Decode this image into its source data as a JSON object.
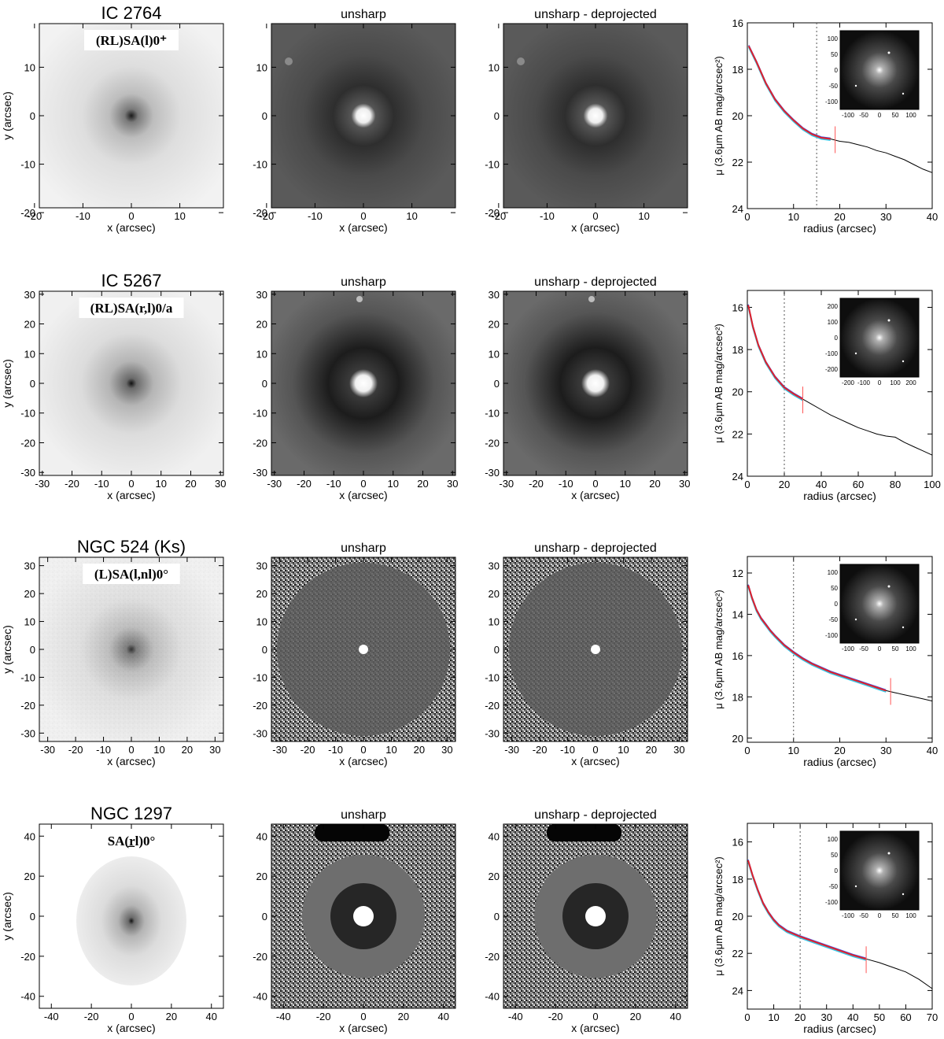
{
  "figure": {
    "panel_titles": {
      "unsharp": "unsharp",
      "deprojected": "unsharp - deprojected"
    },
    "labels": {
      "x_image": "x (arcsec)",
      "y_image": "y (arcsec)",
      "x_profile": "radius (arcsec)",
      "y_profile": "μ (3.6μm AB mag/arcsec²)"
    },
    "rows": [
      {
        "name": "IC 2764",
        "classification": "(RL)SA(l)0⁺",
        "image_ticks": [
          -20,
          -10,
          0,
          10
        ],
        "image_range": [
          -19,
          19
        ],
        "profile": {
          "x_ticks": [
            0,
            10,
            20,
            30,
            40
          ],
          "xlim": [
            0,
            40
          ],
          "y_ticks": [
            16,
            18,
            20,
            22,
            24
          ],
          "ylim": [
            24,
            16
          ],
          "dotted_radius": 15,
          "fit_end": 19,
          "curve": [
            [
              0.3,
              17.0
            ],
            [
              2,
              17.7
            ],
            [
              4,
              18.6
            ],
            [
              6,
              19.3
            ],
            [
              8,
              19.8
            ],
            [
              10,
              20.2
            ],
            [
              12,
              20.55
            ],
            [
              14,
              20.8
            ],
            [
              16,
              20.95
            ],
            [
              18,
              21.0
            ],
            [
              20,
              21.1
            ],
            [
              22,
              21.15
            ],
            [
              24,
              21.25
            ],
            [
              26,
              21.35
            ],
            [
              28,
              21.5
            ],
            [
              30,
              21.6
            ],
            [
              32,
              21.75
            ],
            [
              34,
              21.9
            ],
            [
              36,
              22.1
            ],
            [
              38,
              22.3
            ],
            [
              40,
              22.45
            ]
          ],
          "inset_ticks": [
            -100,
            -50,
            0,
            50,
            100
          ]
        }
      },
      {
        "name": "IC 5267",
        "classification": "(RL)SA(r,l)0/a",
        "image_ticks": [
          -30,
          -20,
          -10,
          0,
          10,
          20,
          30
        ],
        "image_range": [
          -31,
          31
        ],
        "profile": {
          "x_ticks": [
            0,
            20,
            40,
            60,
            80,
            100
          ],
          "xlim": [
            0,
            100
          ],
          "y_ticks": [
            16,
            18,
            20,
            22,
            24
          ],
          "ylim": [
            24,
            15.2
          ],
          "dotted_radius": 20,
          "fit_end": 30,
          "curve": [
            [
              0.5,
              15.9
            ],
            [
              3,
              16.9
            ],
            [
              6,
              17.8
            ],
            [
              10,
              18.6
            ],
            [
              15,
              19.3
            ],
            [
              20,
              19.8
            ],
            [
              25,
              20.1
            ],
            [
              30,
              20.35
            ],
            [
              35,
              20.6
            ],
            [
              40,
              20.85
            ],
            [
              45,
              21.1
            ],
            [
              50,
              21.3
            ],
            [
              55,
              21.5
            ],
            [
              60,
              21.7
            ],
            [
              65,
              21.85
            ],
            [
              70,
              22.0
            ],
            [
              75,
              22.1
            ],
            [
              80,
              22.15
            ],
            [
              85,
              22.4
            ],
            [
              90,
              22.6
            ],
            [
              95,
              22.8
            ],
            [
              100,
              23.0
            ]
          ],
          "inset_ticks": [
            -200,
            -100,
            0,
            100,
            200
          ]
        }
      },
      {
        "name": "NGC  524   (Ks)",
        "classification": "(L)SA(l,nl)0°",
        "image_ticks": [
          -30,
          -20,
          -10,
          0,
          10,
          20,
          30
        ],
        "image_range": [
          -33,
          33
        ],
        "profile": {
          "x_ticks": [
            0,
            10,
            20,
            30,
            40
          ],
          "xlim": [
            0,
            40
          ],
          "y_ticks": [
            12,
            14,
            16,
            18,
            20
          ],
          "ylim": [
            20.2,
            11.2
          ],
          "dotted_radius": 10,
          "fit_end": 31,
          "curve": [
            [
              0.2,
              12.6
            ],
            [
              1,
              13.2
            ],
            [
              2,
              13.8
            ],
            [
              3,
              14.2
            ],
            [
              4,
              14.5
            ],
            [
              5,
              14.8
            ],
            [
              6,
              15.05
            ],
            [
              8,
              15.5
            ],
            [
              10,
              15.85
            ],
            [
              12,
              16.15
            ],
            [
              14,
              16.4
            ],
            [
              16,
              16.6
            ],
            [
              18,
              16.8
            ],
            [
              20,
              16.95
            ],
            [
              22,
              17.1
            ],
            [
              24,
              17.25
            ],
            [
              26,
              17.4
            ],
            [
              28,
              17.55
            ],
            [
              30,
              17.7
            ],
            [
              32,
              17.8
            ],
            [
              34,
              17.9
            ],
            [
              36,
              18.0
            ],
            [
              38,
              18.1
            ],
            [
              40,
              18.2
            ]
          ],
          "inset_ticks": [
            -100,
            -50,
            0,
            50,
            100
          ]
        }
      },
      {
        "name": "NGC 1297",
        "classification": "SA(r̲l)0°",
        "image_ticks": [
          -40,
          -20,
          0,
          20,
          40
        ],
        "image_range": [
          -46,
          46
        ],
        "profile": {
          "x_ticks": [
            0,
            10,
            20,
            30,
            40,
            50,
            60,
            70
          ],
          "xlim": [
            0,
            70
          ],
          "y_ticks": [
            16,
            18,
            20,
            22,
            24
          ],
          "ylim": [
            25,
            15
          ],
          "dotted_radius": 20,
          "fit_end": 45,
          "curve": [
            [
              0.3,
              17.0
            ],
            [
              2,
              17.8
            ],
            [
              4,
              18.6
            ],
            [
              6,
              19.3
            ],
            [
              8,
              19.8
            ],
            [
              10,
              20.2
            ],
            [
              12,
              20.5
            ],
            [
              15,
              20.8
            ],
            [
              20,
              21.1
            ],
            [
              25,
              21.35
            ],
            [
              30,
              21.6
            ],
            [
              35,
              21.85
            ],
            [
              40,
              22.1
            ],
            [
              45,
              22.3
            ],
            [
              50,
              22.5
            ],
            [
              55,
              22.75
            ],
            [
              60,
              23.0
            ],
            [
              65,
              23.4
            ],
            [
              70,
              23.9
            ]
          ],
          "inset_ticks": [
            -100,
            -50,
            0,
            50,
            100
          ]
        }
      }
    ]
  }
}
